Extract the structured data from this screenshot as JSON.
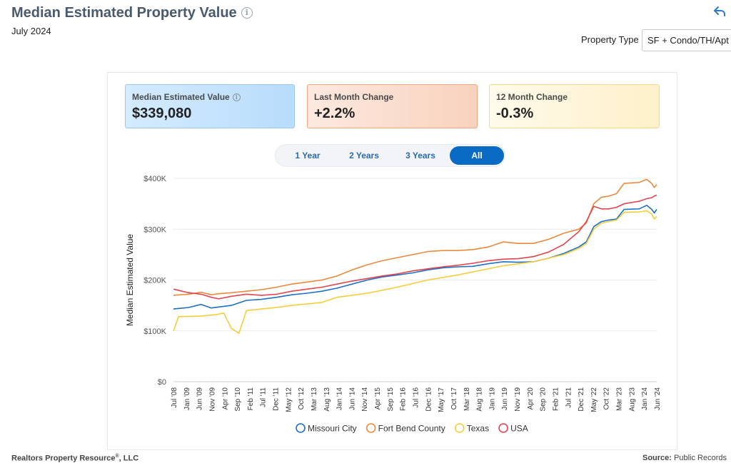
{
  "header": {
    "title": "Median Estimated Property Value",
    "subtitle": "July 2024",
    "property_type_label": "Property Type",
    "property_type_value": "SF + Condo/TH/Apt"
  },
  "cards": {
    "median_label": "Median Estimated Value",
    "median_value": "$339,080",
    "month_label": "Last Month Change",
    "month_value": "+2.2%",
    "year_label": "12 Month Change",
    "year_value": "-0.3%"
  },
  "range_tabs": [
    {
      "label": "1 Year",
      "active": false
    },
    {
      "label": "2 Years",
      "active": false
    },
    {
      "label": "3 Years",
      "active": false
    },
    {
      "label": "All",
      "active": true
    }
  ],
  "footer": {
    "left": "Realtors Property Resource",
    "left_mark": "®",
    "left_suffix": ", LLC",
    "right_label": "Source:",
    "right_value": "Public Records"
  },
  "chart_data": {
    "type": "line",
    "ylabel": "Median Estimated Value",
    "ylim": [
      0,
      400000
    ],
    "y_ticks": [
      0,
      100000,
      200000,
      300000,
      400000
    ],
    "y_tick_labels": [
      "$0",
      "$100K",
      "$200K",
      "$300K",
      "$400K"
    ],
    "x_range": [
      "2008-07",
      "2024-07"
    ],
    "x_tick_labels": [
      "Jul '08",
      "Jan '09",
      "Jun '09",
      "Nov '09",
      "Apr '10",
      "Sep '10",
      "Feb '11",
      "Jul '11",
      "Dec '11",
      "May '12",
      "Oct '12",
      "Mar '13",
      "Aug '13",
      "Jan '14",
      "Jun '14",
      "Nov '14",
      "Apr '15",
      "Sep '15",
      "Feb '16",
      "Jul '16",
      "Dec '16",
      "May '17",
      "Oct '17",
      "Mar '18",
      "Aug '18",
      "Jan '19",
      "Jun '19",
      "Nov '19",
      "Apr '20",
      "Sep '20",
      "Feb '21",
      "Jul '21",
      "Dec '21",
      "May '22",
      "Oct '22",
      "Mar '23",
      "Aug '23",
      "Jan '24",
      "Jun '24"
    ],
    "legend_position": "bottom",
    "grid": true,
    "series": [
      {
        "name": "Missouri City",
        "color": "#1f6fc5",
        "points": [
          [
            "2008-07",
            143000
          ],
          [
            "2009-01",
            146000
          ],
          [
            "2009-06",
            152000
          ],
          [
            "2009-10",
            145000
          ],
          [
            "2010-01",
            147000
          ],
          [
            "2010-06",
            150000
          ],
          [
            "2010-12",
            160000
          ],
          [
            "2011-06",
            162000
          ],
          [
            "2011-12",
            166000
          ],
          [
            "2012-06",
            171000
          ],
          [
            "2012-12",
            174000
          ],
          [
            "2013-06",
            178000
          ],
          [
            "2013-12",
            184000
          ],
          [
            "2014-06",
            192000
          ],
          [
            "2014-12",
            200000
          ],
          [
            "2015-06",
            206000
          ],
          [
            "2015-12",
            210000
          ],
          [
            "2016-06",
            214000
          ],
          [
            "2016-12",
            220000
          ],
          [
            "2017-06",
            224000
          ],
          [
            "2017-12",
            226000
          ],
          [
            "2018-06",
            227000
          ],
          [
            "2018-12",
            232000
          ],
          [
            "2019-06",
            236000
          ],
          [
            "2019-12",
            235000
          ],
          [
            "2020-06",
            236000
          ],
          [
            "2020-12",
            243000
          ],
          [
            "2021-06",
            252000
          ],
          [
            "2021-12",
            265000
          ],
          [
            "2022-03",
            275000
          ],
          [
            "2022-06",
            305000
          ],
          [
            "2022-09",
            315000
          ],
          [
            "2022-12",
            318000
          ],
          [
            "2023-03",
            320000
          ],
          [
            "2023-06",
            339000
          ],
          [
            "2023-12",
            340000
          ],
          [
            "2024-03",
            347000
          ],
          [
            "2024-05",
            339000
          ],
          [
            "2024-06",
            332000
          ],
          [
            "2024-07",
            339080
          ]
        ]
      },
      {
        "name": "Fort Bend County",
        "color": "#ea8a3f",
        "points": [
          [
            "2008-07",
            170000
          ],
          [
            "2009-01",
            172000
          ],
          [
            "2009-06",
            176000
          ],
          [
            "2009-10",
            171000
          ],
          [
            "2010-01",
            173000
          ],
          [
            "2010-06",
            175000
          ],
          [
            "2010-12",
            178000
          ],
          [
            "2011-06",
            181000
          ],
          [
            "2011-12",
            186000
          ],
          [
            "2012-06",
            192000
          ],
          [
            "2012-12",
            196000
          ],
          [
            "2013-06",
            200000
          ],
          [
            "2013-12",
            208000
          ],
          [
            "2014-06",
            220000
          ],
          [
            "2014-12",
            230000
          ],
          [
            "2015-06",
            238000
          ],
          [
            "2015-12",
            244000
          ],
          [
            "2016-06",
            250000
          ],
          [
            "2016-12",
            256000
          ],
          [
            "2017-06",
            258000
          ],
          [
            "2017-12",
            258000
          ],
          [
            "2018-06",
            260000
          ],
          [
            "2018-12",
            265000
          ],
          [
            "2019-06",
            275000
          ],
          [
            "2019-12",
            272000
          ],
          [
            "2020-06",
            272000
          ],
          [
            "2020-12",
            280000
          ],
          [
            "2021-06",
            292000
          ],
          [
            "2021-12",
            300000
          ],
          [
            "2022-03",
            312000
          ],
          [
            "2022-06",
            350000
          ],
          [
            "2022-09",
            363000
          ],
          [
            "2022-12",
            365000
          ],
          [
            "2023-03",
            370000
          ],
          [
            "2023-06",
            390000
          ],
          [
            "2023-12",
            392000
          ],
          [
            "2024-03",
            398000
          ],
          [
            "2024-05",
            390000
          ],
          [
            "2024-06",
            382000
          ],
          [
            "2024-07",
            388000
          ]
        ]
      },
      {
        "name": "Texas",
        "color": "#f5cd3b",
        "points": [
          [
            "2008-07",
            100000
          ],
          [
            "2008-09",
            128000
          ],
          [
            "2009-06",
            129000
          ],
          [
            "2009-12",
            132000
          ],
          [
            "2010-03",
            135000
          ],
          [
            "2010-06",
            105000
          ],
          [
            "2010-09",
            95000
          ],
          [
            "2010-12",
            140000
          ],
          [
            "2011-06",
            143000
          ],
          [
            "2011-12",
            146000
          ],
          [
            "2012-06",
            150000
          ],
          [
            "2012-12",
            153000
          ],
          [
            "2013-06",
            156000
          ],
          [
            "2013-12",
            166000
          ],
          [
            "2014-06",
            170000
          ],
          [
            "2014-12",
            174000
          ],
          [
            "2015-06",
            180000
          ],
          [
            "2015-12",
            186000
          ],
          [
            "2016-06",
            193000
          ],
          [
            "2016-12",
            200000
          ],
          [
            "2017-06",
            205000
          ],
          [
            "2017-12",
            210000
          ],
          [
            "2018-06",
            216000
          ],
          [
            "2018-12",
            222000
          ],
          [
            "2019-06",
            228000
          ],
          [
            "2019-12",
            232000
          ],
          [
            "2020-06",
            236000
          ],
          [
            "2020-12",
            243000
          ],
          [
            "2021-06",
            250000
          ],
          [
            "2021-12",
            262000
          ],
          [
            "2022-03",
            272000
          ],
          [
            "2022-06",
            300000
          ],
          [
            "2022-09",
            312000
          ],
          [
            "2022-12",
            315000
          ],
          [
            "2023-03",
            318000
          ],
          [
            "2023-06",
            333000
          ],
          [
            "2023-12",
            334000
          ],
          [
            "2024-03",
            336000
          ],
          [
            "2024-05",
            330000
          ],
          [
            "2024-06",
            320000
          ],
          [
            "2024-07",
            325000
          ]
        ]
      },
      {
        "name": "USA",
        "color": "#e0464f",
        "points": [
          [
            "2008-07",
            182000
          ],
          [
            "2009-01",
            175000
          ],
          [
            "2009-06",
            172000
          ],
          [
            "2009-10",
            166000
          ],
          [
            "2010-01",
            163000
          ],
          [
            "2010-06",
            168000
          ],
          [
            "2010-12",
            172000
          ],
          [
            "2011-06",
            170000
          ],
          [
            "2011-12",
            172000
          ],
          [
            "2012-06",
            178000
          ],
          [
            "2012-12",
            182000
          ],
          [
            "2013-06",
            186000
          ],
          [
            "2013-12",
            192000
          ],
          [
            "2014-06",
            198000
          ],
          [
            "2014-12",
            203000
          ],
          [
            "2015-06",
            208000
          ],
          [
            "2015-12",
            212000
          ],
          [
            "2016-06",
            218000
          ],
          [
            "2016-12",
            222000
          ],
          [
            "2017-06",
            226000
          ],
          [
            "2017-12",
            229000
          ],
          [
            "2018-06",
            233000
          ],
          [
            "2018-12",
            238000
          ],
          [
            "2019-06",
            241000
          ],
          [
            "2019-12",
            242000
          ],
          [
            "2020-06",
            246000
          ],
          [
            "2020-12",
            255000
          ],
          [
            "2021-06",
            270000
          ],
          [
            "2021-12",
            295000
          ],
          [
            "2022-03",
            315000
          ],
          [
            "2022-06",
            345000
          ],
          [
            "2022-09",
            340000
          ],
          [
            "2022-12",
            340000
          ],
          [
            "2023-03",
            343000
          ],
          [
            "2023-06",
            350000
          ],
          [
            "2023-12",
            355000
          ],
          [
            "2024-03",
            360000
          ],
          [
            "2024-05",
            362000
          ],
          [
            "2024-06",
            365000
          ],
          [
            "2024-07",
            367000
          ]
        ]
      }
    ]
  }
}
